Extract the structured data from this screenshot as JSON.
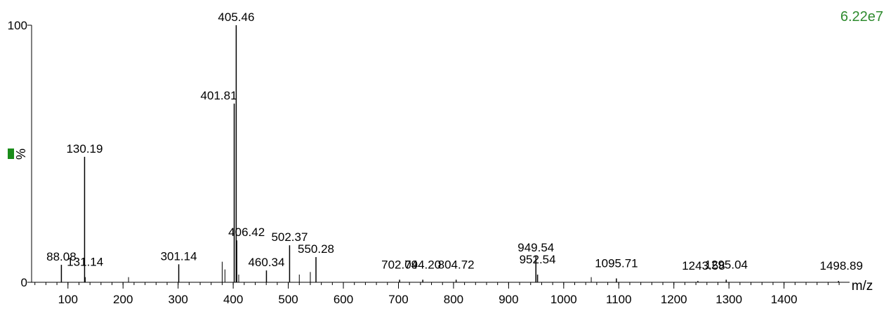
{
  "chart_data": {
    "type": "stem",
    "corner_value": "6.22e7",
    "ylabel": "%",
    "xlabel": "m/z",
    "x": [
      88.08,
      130.19,
      131.14,
      301.14,
      401.81,
      405.46,
      406.42,
      460.34,
      502.37,
      550.28,
      702.09,
      744.2,
      804.72,
      949.54,
      952.54,
      1095.71,
      1243.58,
      1295.04,
      1498.89
    ],
    "peak_labels": [
      "88.08",
      "130.19",
      "131.14",
      "301.14",
      "401.81",
      "405.46",
      "406.42",
      "460.34",
      "502.37",
      "550.28",
      "702.09",
      "744.20",
      "804.72",
      "949.54",
      "952.54",
      "1095.71",
      "1243.58",
      "1295.04",
      "1498.89"
    ],
    "values": [
      6.8,
      48.8,
      2,
      7,
      69.5,
      100,
      16.3,
      4.6,
      14.4,
      9.8,
      1,
      1,
      1,
      10.4,
      3,
      1.5,
      0.5,
      1,
      0.5
    ],
    "minor_x": [
      210,
      380,
      385,
      410,
      520,
      540,
      1050
    ],
    "minor_values": [
      2,
      8,
      5,
      3,
      3,
      4,
      2
    ],
    "color": "#000000",
    "label_color": "#2e8b2e",
    "xlim": [
      34,
      1519
    ],
    "ylim": [
      0,
      100
    ],
    "xticks": [
      100,
      200,
      300,
      400,
      500,
      600,
      700,
      800,
      900,
      1000,
      1100,
      1200,
      1300,
      1400
    ],
    "xminor": 20,
    "yticks": [
      0,
      100
    ]
  }
}
